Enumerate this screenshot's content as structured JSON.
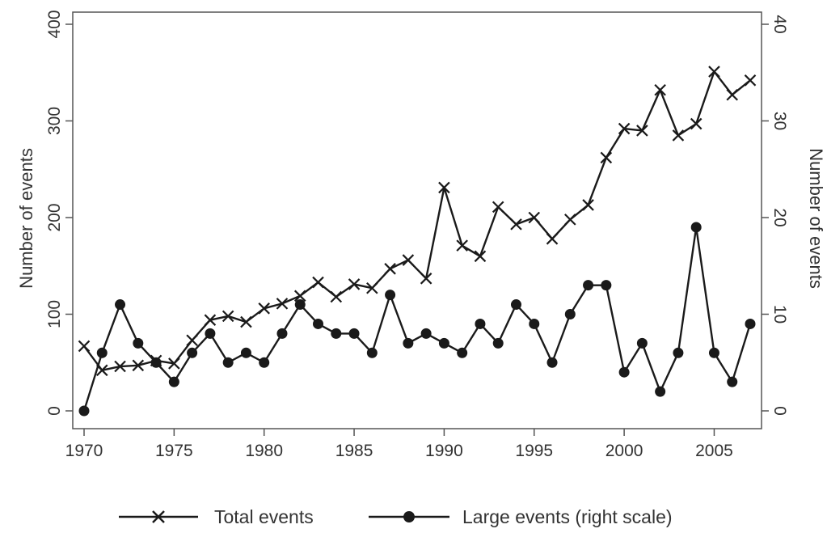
{
  "chart_data": {
    "type": "line",
    "x": [
      1970,
      1971,
      1972,
      1973,
      1974,
      1975,
      1976,
      1977,
      1978,
      1979,
      1980,
      1981,
      1982,
      1983,
      1984,
      1985,
      1986,
      1987,
      1988,
      1989,
      1990,
      1991,
      1992,
      1993,
      1994,
      1995,
      1996,
      1997,
      1998,
      1999,
      2000,
      2001,
      2002,
      2003,
      2004,
      2005,
      2006,
      2007
    ],
    "series": [
      {
        "name": "Total events",
        "axis": "left",
        "marker": "x",
        "values": [
          67,
          42,
          46,
          47,
          52,
          49,
          73,
          94,
          98,
          92,
          106,
          111,
          119,
          133,
          118,
          131,
          127,
          147,
          156,
          137,
          231,
          171,
          160,
          211,
          193,
          200,
          178,
          198,
          213,
          262,
          292,
          290,
          332,
          285,
          297,
          351,
          327,
          342
        ]
      },
      {
        "name": "Large events (right scale)",
        "axis": "right",
        "marker": "circle",
        "values": [
          0,
          6,
          11,
          7,
          5,
          3,
          6,
          8,
          5,
          6,
          5,
          8,
          11,
          9,
          8,
          8,
          6,
          12,
          7,
          8,
          7,
          6,
          9,
          7,
          11,
          9,
          5,
          10,
          13,
          13,
          4,
          7,
          2,
          6,
          19,
          6,
          3,
          9
        ]
      }
    ],
    "xlabel": "",
    "ylabel_left": "Number of events",
    "ylabel_right": "Number of events",
    "xlim": [
      1970,
      2007
    ],
    "ylim_left": [
      0,
      400
    ],
    "ylim_right": [
      0,
      40
    ],
    "xticks": [
      1970,
      1975,
      1980,
      1985,
      1990,
      1995,
      2000,
      2005
    ],
    "yticks_left": [
      0,
      100,
      200,
      300,
      400
    ],
    "yticks_right": [
      0,
      10,
      20,
      30,
      40
    ],
    "grid": false,
    "legend": "bottom",
    "colors": {
      "line": "#1a1a1a",
      "axis": "#555555",
      "text": "#333333"
    }
  }
}
